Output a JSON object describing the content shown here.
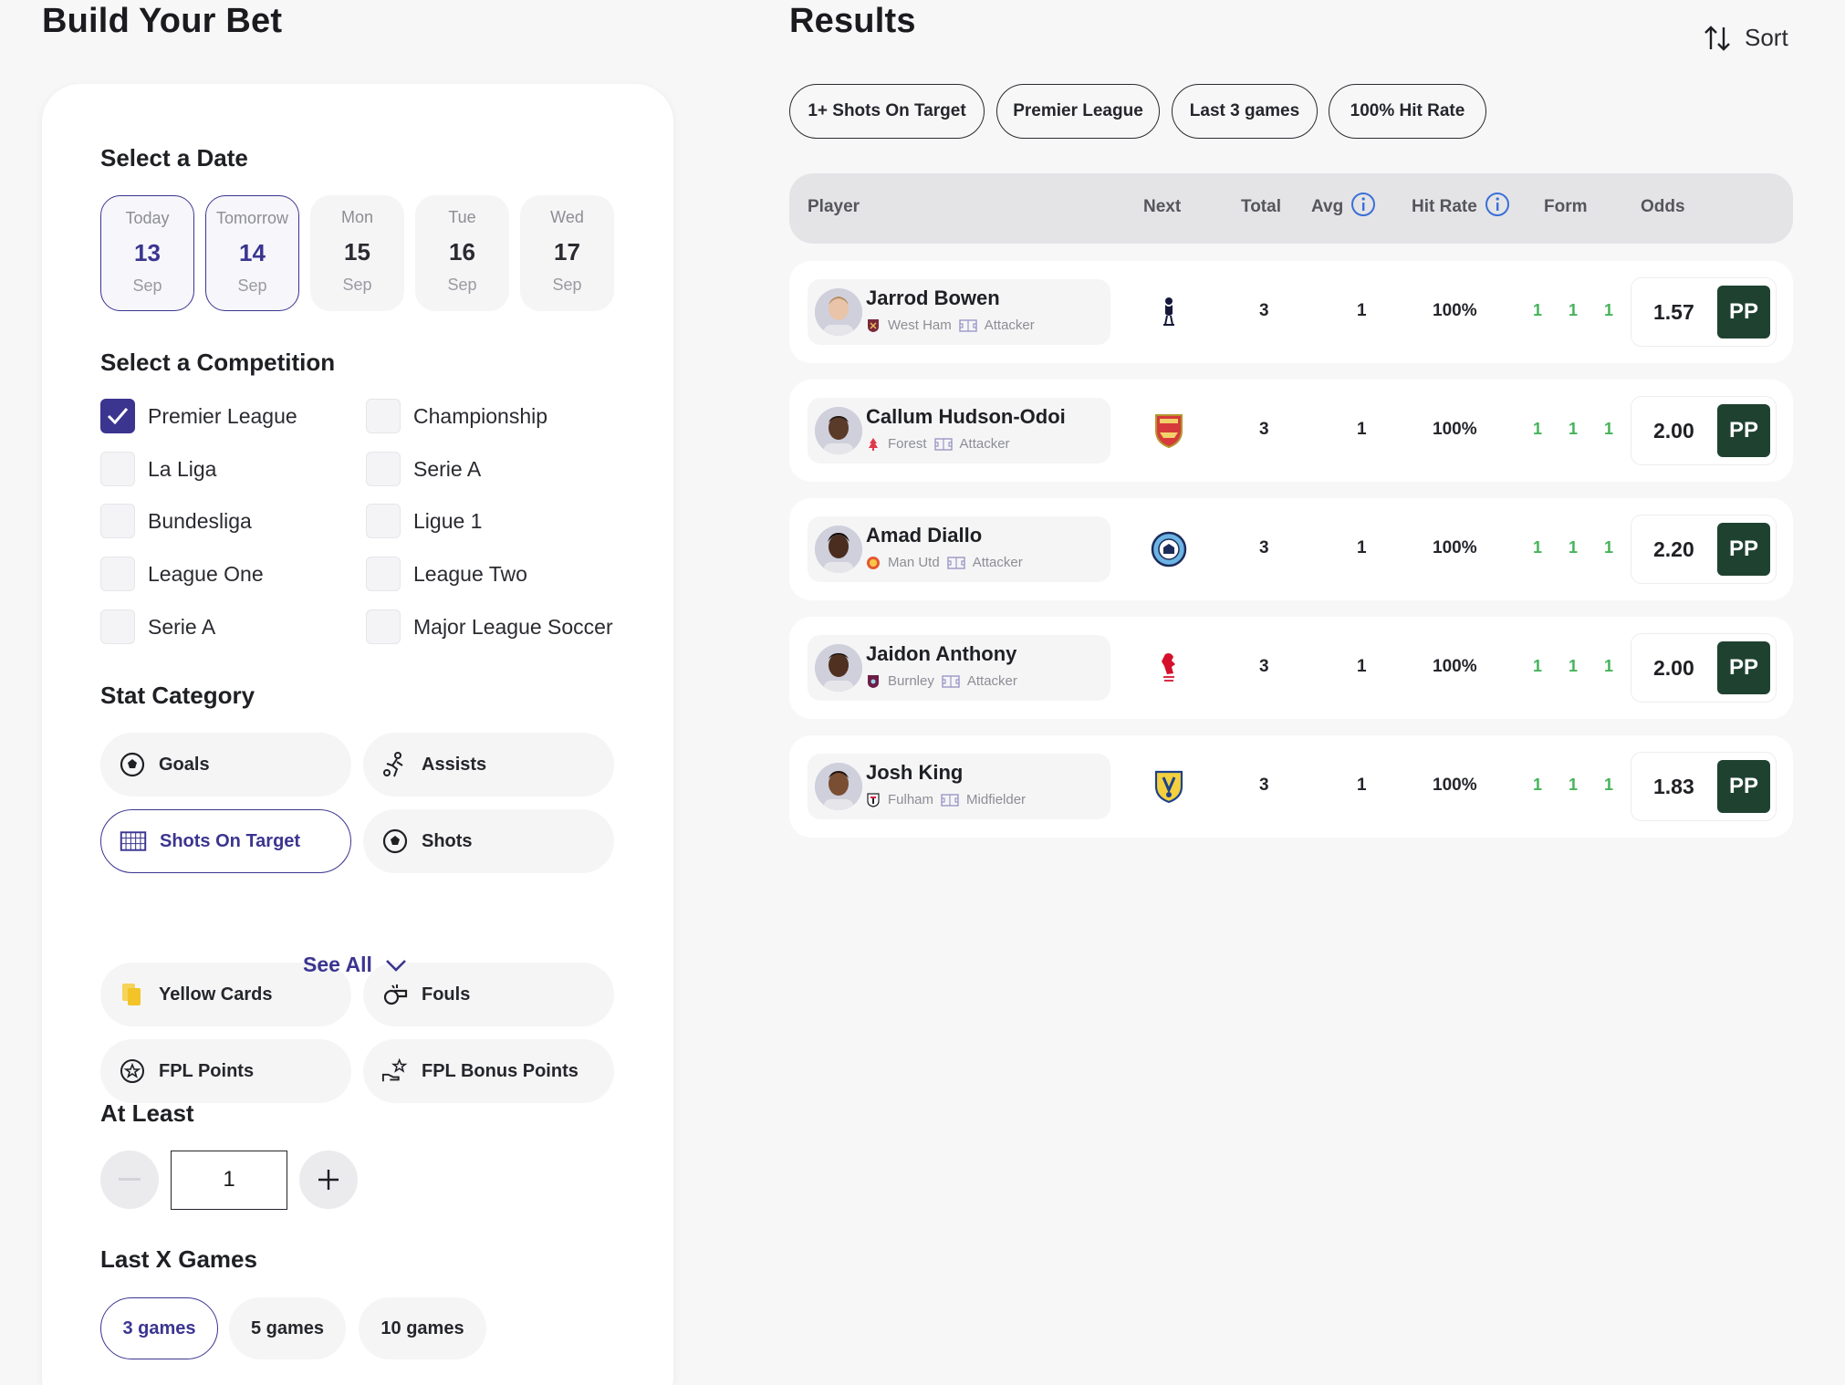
{
  "left_title": "Build Your Bet",
  "right_title": "Results",
  "date_section": {
    "title": "Select a Date",
    "dates": [
      {
        "day": "Today",
        "num": "13",
        "month": "Sep"
      },
      {
        "day": "Tomorrow",
        "num": "14",
        "month": "Sep"
      },
      {
        "day": "Mon",
        "num": "15",
        "month": "Sep"
      },
      {
        "day": "Tue",
        "num": "16",
        "month": "Sep"
      },
      {
        "day": "Wed",
        "num": "17",
        "month": "Sep"
      }
    ]
  },
  "competition_section": {
    "title": "Select a Competition",
    "items": [
      {
        "label": "Premier League",
        "checked": true
      },
      {
        "label": "Championship",
        "checked": false
      },
      {
        "label": "La Liga",
        "checked": false
      },
      {
        "label": "Serie A",
        "checked": false
      },
      {
        "label": "Bundesliga",
        "checked": false
      },
      {
        "label": "Ligue 1",
        "checked": false
      },
      {
        "label": "League One",
        "checked": false
      },
      {
        "label": "League Two",
        "checked": false
      },
      {
        "label": "Serie A",
        "checked": false
      },
      {
        "label": "Major League Soccer",
        "checked": false
      }
    ]
  },
  "stat_section": {
    "title": "Stat Category",
    "items": [
      {
        "label": "Goals",
        "icon": "football-icon"
      },
      {
        "label": "Assists",
        "icon": "assist-player-icon"
      },
      {
        "label": "Shots On Target",
        "icon": "goal-net-icon",
        "active": true
      },
      {
        "label": "Shots",
        "icon": "football-icon"
      },
      {
        "label": "Yellow Cards",
        "icon": "yellow-card-icon"
      },
      {
        "label": "Fouls",
        "icon": "whistle-icon"
      },
      {
        "label": "FPL Points",
        "icon": "star-badge-icon"
      },
      {
        "label": "FPL Bonus Points",
        "icon": "star-hand-icon"
      }
    ],
    "see_all": "See All"
  },
  "at_least": {
    "title": "At Least",
    "value": "1"
  },
  "last_games": {
    "title": "Last X Games",
    "options": [
      "3 games",
      "5 games",
      "10 games"
    ],
    "selected": "3 games"
  },
  "sort_label": "Sort",
  "filters": [
    "1+ Shots On Target",
    "Premier League",
    "Last 3 games",
    "100% Hit Rate"
  ],
  "table": {
    "headers": {
      "player": "Player",
      "next": "Next",
      "total": "Total",
      "avg": "Avg",
      "hit_rate": "Hit Rate",
      "form": "Form",
      "odds": "Odds"
    },
    "rows": [
      {
        "name": "Jarrod Bowen",
        "team": "West Ham",
        "position": "Attacker",
        "next": "spurs-crest-icon",
        "total": "3",
        "avg": "1",
        "hit_rate": "100%",
        "form": "1 1 1",
        "odds": "1.57"
      },
      {
        "name": "Callum Hudson-Odoi",
        "team": "Forest",
        "position": "Attacker",
        "next": "arsenal-crest-icon",
        "total": "3",
        "avg": "1",
        "hit_rate": "100%",
        "form": "1 1 1",
        "odds": "2.00"
      },
      {
        "name": "Amad Diallo",
        "team": "Man Utd",
        "position": "Attacker",
        "next": "man-city-crest-icon",
        "total": "3",
        "avg": "1",
        "hit_rate": "100%",
        "form": "1 1 1",
        "odds": "2.20"
      },
      {
        "name": "Jaidon Anthony",
        "team": "Burnley",
        "position": "Attacker",
        "next": "liverpool-crest-icon",
        "total": "3",
        "avg": "1",
        "hit_rate": "100%",
        "form": "1 1 1",
        "odds": "2.00"
      },
      {
        "name": "Josh King",
        "team": "Fulham",
        "position": "Midfielder",
        "next": "leeds-crest-icon",
        "total": "3",
        "avg": "1",
        "hit_rate": "100%",
        "form": "1 1 1",
        "odds": "1.83"
      }
    ],
    "bookmaker_badge": "PP"
  },
  "colors": {
    "accent": "#3b3590",
    "form_green": "#46b35a",
    "bookmaker": "#1f4230"
  }
}
